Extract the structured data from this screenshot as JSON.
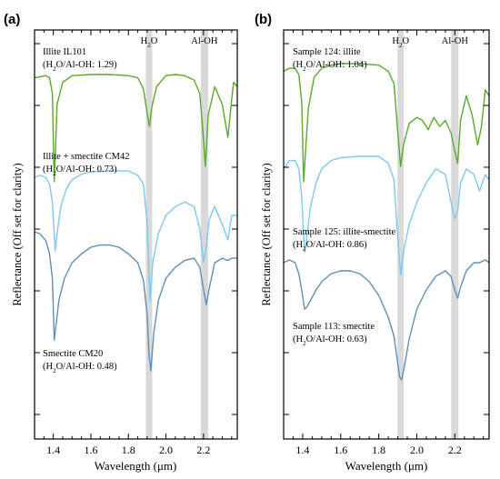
{
  "figure": {
    "panels": [
      {
        "label": "(a)",
        "xlabel": "Wavelength (μm)",
        "ylabel": "Reflectance (Off set for clarity)"
      },
      {
        "label": "(b)",
        "xlabel": "Wavelength (μm)",
        "ylabel": "Reflectance (Off set for clarity)"
      }
    ]
  },
  "chart_data": [
    {
      "type": "line",
      "panel": "(a)",
      "xlabel": "Wavelength (μm)",
      "ylabel": "Reflectance (Off set for clarity)",
      "xlim": [
        1.3,
        2.38
      ],
      "xticks": [
        1.4,
        1.6,
        1.8,
        2.0,
        2.2
      ],
      "xtick_labels": [
        "1.4",
        "1.6",
        "1.8",
        "2.0",
        "2.2"
      ],
      "y_ticks_labeled": false,
      "bands": [
        {
          "label": "H₂O",
          "center": 1.91
        },
        {
          "label": "Al-OH",
          "center": 2.205
        }
      ],
      "colors": {
        "green": "#5aaa2a",
        "light_blue": "#7ec8ef",
        "slate_blue": "#5e8fb5",
        "band": "#d9d9d9"
      },
      "series": [
        {
          "annotation": "Illite IL101",
          "ratio_text": "(H₂O/Al-OH: 1.29)",
          "color": "#5aaa2a",
          "x": [
            1.3,
            1.33,
            1.36,
            1.38,
            1.395,
            1.405,
            1.412,
            1.42,
            1.45,
            1.5,
            1.6,
            1.7,
            1.8,
            1.85,
            1.88,
            1.9,
            1.912,
            1.925,
            1.95,
            2.0,
            2.05,
            2.1,
            2.15,
            2.18,
            2.195,
            2.21,
            2.225,
            2.26,
            2.3,
            2.33,
            2.345,
            2.36,
            2.38
          ],
          "y": [
            0.92,
            0.925,
            0.93,
            0.92,
            0.85,
            0.45,
            0.6,
            0.8,
            0.9,
            0.93,
            0.935,
            0.935,
            0.93,
            0.92,
            0.87,
            0.76,
            0.7,
            0.79,
            0.88,
            0.93,
            0.935,
            0.93,
            0.91,
            0.85,
            0.7,
            0.52,
            0.75,
            0.88,
            0.8,
            0.65,
            0.78,
            0.9,
            0.88
          ]
        },
        {
          "annotation": "Illite + smectite CM42",
          "ratio_text": "(H₂O/Al-OH: 0.73)",
          "color": "#7ec8ef",
          "x": [
            1.3,
            1.33,
            1.36,
            1.38,
            1.395,
            1.41,
            1.42,
            1.44,
            1.47,
            1.5,
            1.55,
            1.6,
            1.7,
            1.8,
            1.85,
            1.88,
            1.9,
            1.915,
            1.93,
            1.96,
            2.0,
            2.05,
            2.1,
            2.15,
            2.18,
            2.2,
            2.215,
            2.23,
            2.26,
            2.3,
            2.33,
            2.35,
            2.38
          ],
          "y": [
            0.83,
            0.84,
            0.83,
            0.8,
            0.72,
            0.5,
            0.58,
            0.7,
            0.78,
            0.82,
            0.845,
            0.855,
            0.86,
            0.86,
            0.84,
            0.8,
            0.62,
            0.28,
            0.45,
            0.58,
            0.66,
            0.7,
            0.72,
            0.7,
            0.6,
            0.45,
            0.52,
            0.64,
            0.7,
            0.62,
            0.55,
            0.66,
            0.66
          ]
        },
        {
          "annotation": "Smectite CM20",
          "ratio_text": "(H₂O/Al-OH: 0.48)",
          "color": "#5e8fb5",
          "x": [
            1.3,
            1.33,
            1.36,
            1.38,
            1.395,
            1.405,
            1.415,
            1.43,
            1.46,
            1.5,
            1.55,
            1.6,
            1.65,
            1.7,
            1.75,
            1.8,
            1.85,
            1.88,
            1.9,
            1.91,
            1.92,
            1.935,
            1.96,
            2.0,
            2.05,
            2.1,
            2.15,
            2.18,
            2.2,
            2.215,
            2.23,
            2.26,
            2.3,
            2.33,
            2.35,
            2.38
          ],
          "y": [
            0.76,
            0.75,
            0.72,
            0.66,
            0.55,
            0.27,
            0.34,
            0.45,
            0.55,
            0.62,
            0.66,
            0.69,
            0.7,
            0.7,
            0.69,
            0.66,
            0.62,
            0.54,
            0.38,
            0.2,
            0.13,
            0.3,
            0.45,
            0.55,
            0.6,
            0.63,
            0.64,
            0.6,
            0.5,
            0.43,
            0.5,
            0.62,
            0.64,
            0.63,
            0.64,
            0.64
          ]
        }
      ]
    },
    {
      "type": "line",
      "panel": "(b)",
      "xlabel": "Wavelength (μm)",
      "ylabel": "Reflectance (Off set for clarity)",
      "xlim": [
        1.3,
        2.38
      ],
      "xticks": [
        1.4,
        1.6,
        1.8,
        2.0,
        2.2
      ],
      "xtick_labels": [
        "1.4",
        "1.6",
        "1.8",
        "2.0",
        "2.2"
      ],
      "y_ticks_labeled": false,
      "bands": [
        {
          "label": "H₂O",
          "center": 1.915
        },
        {
          "label": "Al-OH",
          "center": 2.2
        }
      ],
      "colors": {
        "green": "#5aaa2a",
        "light_blue": "#7ec8ef",
        "slate_blue": "#5e8fb5",
        "band": "#d9d9d9"
      },
      "series": [
        {
          "annotation": "Sample 124: illite",
          "ratio_text": "(H₂O/Al-OH: 1.04)",
          "color": "#5aaa2a",
          "x": [
            1.3,
            1.33,
            1.36,
            1.38,
            1.395,
            1.405,
            1.415,
            1.43,
            1.46,
            1.5,
            1.55,
            1.6,
            1.7,
            1.8,
            1.85,
            1.88,
            1.9,
            1.915,
            1.93,
            1.96,
            2.0,
            2.03,
            2.06,
            2.09,
            2.12,
            2.15,
            2.18,
            2.2,
            2.215,
            2.23,
            2.26,
            2.29,
            2.32,
            2.34,
            2.36,
            2.38
          ],
          "y": [
            0.88,
            0.89,
            0.89,
            0.87,
            0.78,
            0.52,
            0.62,
            0.76,
            0.86,
            0.89,
            0.9,
            0.905,
            0.905,
            0.9,
            0.88,
            0.84,
            0.68,
            0.57,
            0.64,
            0.71,
            0.73,
            0.72,
            0.69,
            0.73,
            0.7,
            0.72,
            0.68,
            0.62,
            0.58,
            0.72,
            0.8,
            0.74,
            0.64,
            0.7,
            0.82,
            0.8
          ]
        },
        {
          "annotation": "Sample 125: illite-smectite",
          "ratio_text": "(H₂O/Al-OH: 0.86)",
          "color": "#7ec8ef",
          "x": [
            1.3,
            1.33,
            1.36,
            1.38,
            1.395,
            1.41,
            1.42,
            1.44,
            1.47,
            1.5,
            1.55,
            1.6,
            1.7,
            1.8,
            1.85,
            1.88,
            1.9,
            1.915,
            1.93,
            1.96,
            2.0,
            2.05,
            2.1,
            2.15,
            2.18,
            2.2,
            2.215,
            2.23,
            2.26,
            2.3,
            2.33,
            2.36,
            2.38
          ],
          "y": [
            0.6,
            0.63,
            0.63,
            0.6,
            0.5,
            0.3,
            0.34,
            0.46,
            0.55,
            0.6,
            0.63,
            0.64,
            0.645,
            0.645,
            0.62,
            0.56,
            0.35,
            0.22,
            0.3,
            0.4,
            0.48,
            0.55,
            0.6,
            0.58,
            0.48,
            0.42,
            0.45,
            0.55,
            0.6,
            0.58,
            0.52,
            0.58,
            0.56
          ]
        },
        {
          "annotation": "Sample 113: smectite",
          "ratio_text": "(H₂O/Al-OH: 0.63)",
          "color": "#5e8fb5",
          "x": [
            1.3,
            1.33,
            1.36,
            1.38,
            1.395,
            1.41,
            1.42,
            1.44,
            1.47,
            1.5,
            1.55,
            1.6,
            1.65,
            1.7,
            1.75,
            1.8,
            1.85,
            1.88,
            1.9,
            1.91,
            1.92,
            1.935,
            1.96,
            2.0,
            2.05,
            2.1,
            2.15,
            2.18,
            2.2,
            2.215,
            2.23,
            2.26,
            2.3,
            2.33,
            2.36,
            2.38
          ],
          "y": [
            0.22,
            0.23,
            0.22,
            0.18,
            0.12,
            0.05,
            0.055,
            0.08,
            0.12,
            0.15,
            0.18,
            0.19,
            0.19,
            0.18,
            0.15,
            0.1,
            0.02,
            -0.05,
            -0.15,
            -0.2,
            -0.21,
            -0.16,
            -0.06,
            0.05,
            0.12,
            0.17,
            0.19,
            0.17,
            0.12,
            0.09,
            0.13,
            0.19,
            0.22,
            0.22,
            0.23,
            0.22
          ]
        }
      ]
    }
  ]
}
